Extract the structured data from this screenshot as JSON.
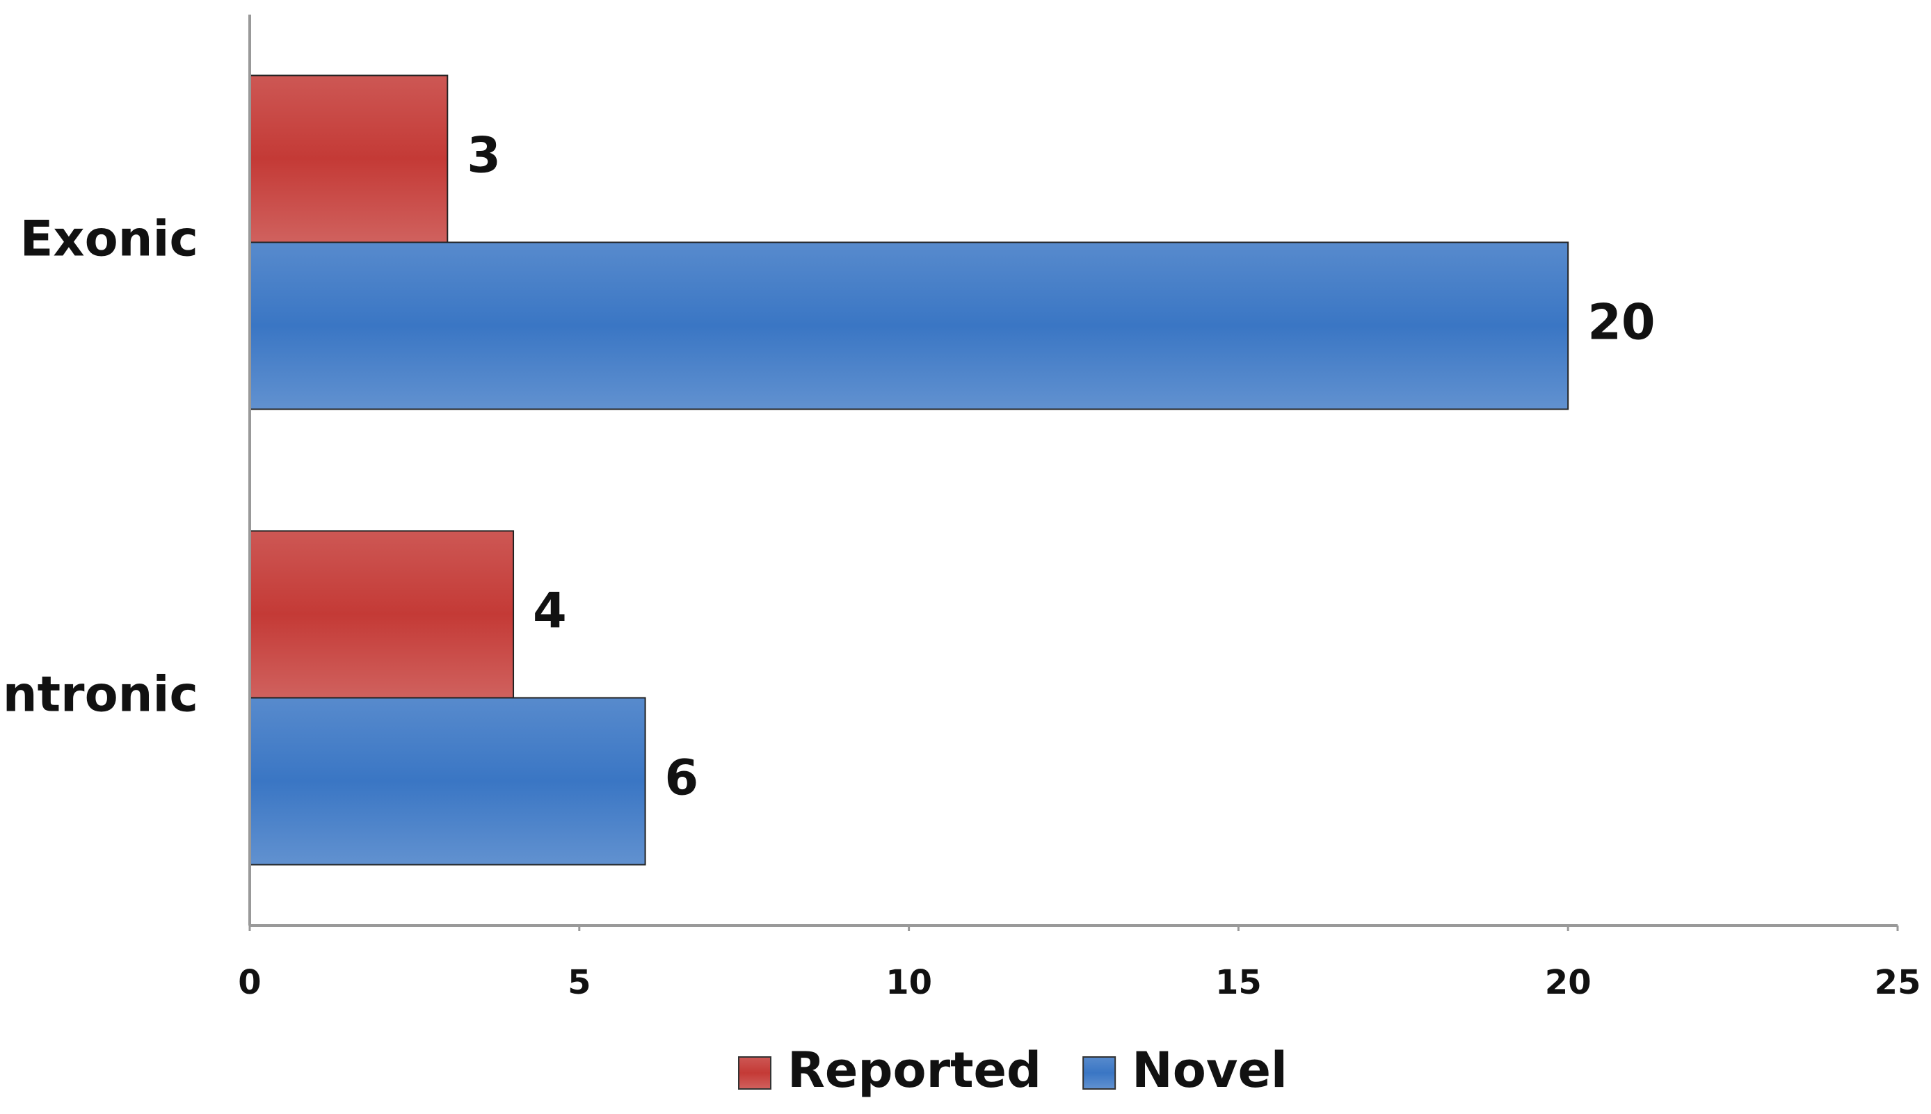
{
  "chart_data": {
    "type": "hbar",
    "categories": [
      "Exonic",
      "Intronic"
    ],
    "series": [
      {
        "name": "Reported",
        "color": "#c43a36",
        "values": [
          3,
          4
        ]
      },
      {
        "name": "Novel",
        "color": "#3a76c4",
        "values": [
          20,
          6
        ]
      }
    ],
    "xlim": [
      0,
      25
    ],
    "xticks": [
      0,
      5,
      10,
      15,
      20,
      25
    ],
    "grid": false,
    "legend": "bottom"
  }
}
